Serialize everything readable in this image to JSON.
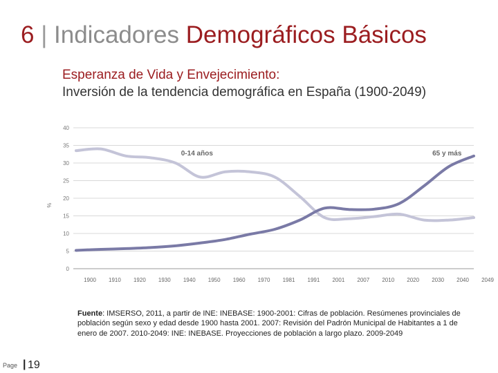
{
  "slide": {
    "number": "6",
    "separator": "|",
    "title_part1": "Indicadores",
    "title_part2": "Demográficos Básicos"
  },
  "subtitle": {
    "line1": "Esperanza de Vida y Envejecimiento:",
    "line2": "Inversión de la tendencia demográfica en España (1900-2049)"
  },
  "source": {
    "label": "Fuente",
    "text": ": IMSERSO, 2011, a partir de INE: INEBASE: 1900-2001: Cifras de población. Resúmenes provinciales de población según sexo y edad desde 1900 hasta 2001. 2007: Revisión del Padrón Municipal de Habitantes a 1 de enero de 2007. 2010-2049: INE: INEBASE. Proyecciones de población a largo plazo. 2009-2049"
  },
  "footer": {
    "page_label": "Page",
    "bar": "|",
    "page_number": "19"
  },
  "colors": {
    "title_red": "#9b1d20",
    "title_grey": "#8c8c8c",
    "series_young": "#c4c4d8",
    "series_old": "#7a7aa6"
  },
  "chart_data": {
    "type": "line",
    "title": "",
    "xlabel": "",
    "ylabel": "%",
    "ylim": [
      0,
      40
    ],
    "yticks": [
      "0",
      "5",
      "10",
      "15",
      "20",
      "25",
      "30",
      "35",
      "40"
    ],
    "grid": true,
    "categories": [
      "1900",
      "1910",
      "1920",
      "1930",
      "1940",
      "1950",
      "1960",
      "1970",
      "1981",
      "1991",
      "2001",
      "2007",
      "2010",
      "2020",
      "2030",
      "2040",
      "2049"
    ],
    "series": [
      {
        "name": "0-14 años",
        "color": "#c4c4d8",
        "values": [
          33.5,
          34,
          32,
          31.5,
          30,
          26,
          27.5,
          27.5,
          26,
          20.5,
          14.5,
          14.2,
          14.8,
          15.5,
          13.8,
          13.8,
          14.5
        ]
      },
      {
        "name": "65 y más",
        "color": "#7a7aa6",
        "values": [
          5.2,
          5.5,
          5.7,
          6.0,
          6.5,
          7.3,
          8.3,
          9.8,
          11.2,
          13.8,
          17.2,
          16.8,
          16.9,
          18.5,
          23.5,
          29.0,
          32.0
        ]
      }
    ]
  }
}
